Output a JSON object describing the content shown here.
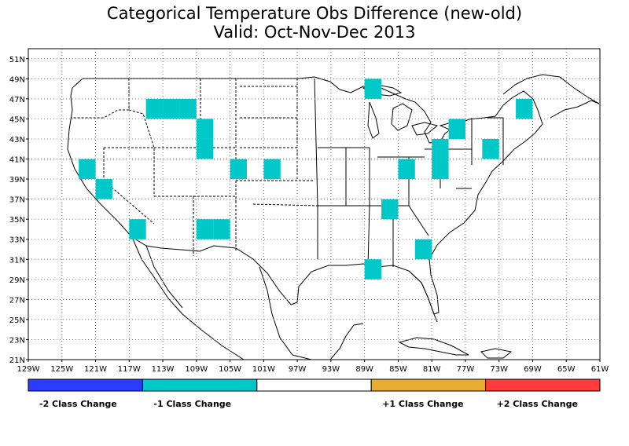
{
  "title": {
    "line1": "Categorical Temperature Obs Difference (new-old)",
    "line2": "Valid: Oct-Nov-Dec 2013"
  },
  "map": {
    "lat_labels": [
      "51N",
      "49N",
      "47N",
      "45N",
      "43N",
      "41N",
      "39N",
      "37N",
      "35N",
      "33N",
      "31N",
      "29N",
      "27N",
      "25N",
      "23N",
      "21N"
    ],
    "lon_labels": [
      "129W",
      "125W",
      "121W",
      "117W",
      "113W",
      "109W",
      "105W",
      "101W",
      "97W",
      "93W",
      "89W",
      "85W",
      "81W",
      "77W",
      "73W",
      "69W",
      "65W",
      "61W"
    ],
    "cell_color": "#00c8c8",
    "changed_cells": [
      {
        "lon": -122,
        "lat": 40,
        "class": -1
      },
      {
        "lon": -120,
        "lat": 38,
        "class": -1
      },
      {
        "lon": -116,
        "lat": 34,
        "class": -1
      },
      {
        "lon": -114,
        "lat": 46,
        "class": -1
      },
      {
        "lon": -112,
        "lat": 46,
        "class": -1
      },
      {
        "lon": -110,
        "lat": 46,
        "class": -1
      },
      {
        "lon": -108,
        "lat": 44,
        "class": -1
      },
      {
        "lon": -108,
        "lat": 42,
        "class": -1
      },
      {
        "lon": -108,
        "lat": 34,
        "class": -1
      },
      {
        "lon": -106,
        "lat": 34,
        "class": -1
      },
      {
        "lon": -104,
        "lat": 40,
        "class": -1
      },
      {
        "lon": -100,
        "lat": 40,
        "class": -1
      },
      {
        "lon": -88,
        "lat": 48,
        "class": -1
      },
      {
        "lon": -88,
        "lat": 30,
        "class": -1
      },
      {
        "lon": -86,
        "lat": 36,
        "class": -1
      },
      {
        "lon": -84,
        "lat": 40,
        "class": -1
      },
      {
        "lon": -82,
        "lat": 32,
        "class": -1
      },
      {
        "lon": -80,
        "lat": 42,
        "class": -1
      },
      {
        "lon": -80,
        "lat": 40,
        "class": -1
      },
      {
        "lon": -78,
        "lat": 44,
        "class": -1
      },
      {
        "lon": -74,
        "lat": 42,
        "class": -1
      },
      {
        "lon": -70,
        "lat": 46,
        "class": -1
      }
    ]
  },
  "legend": {
    "items": [
      {
        "label": "-2 Class Change",
        "color": "#2a3cff"
      },
      {
        "label": "-1 Class Change",
        "color": "#00c8c8"
      },
      {
        "label": "",
        "color": "#ffffff"
      },
      {
        "label": "+1 Class Change",
        "color": "#e8ac30"
      },
      {
        "label": "+2 Class Change",
        "color": "#ff3c3c"
      }
    ]
  }
}
